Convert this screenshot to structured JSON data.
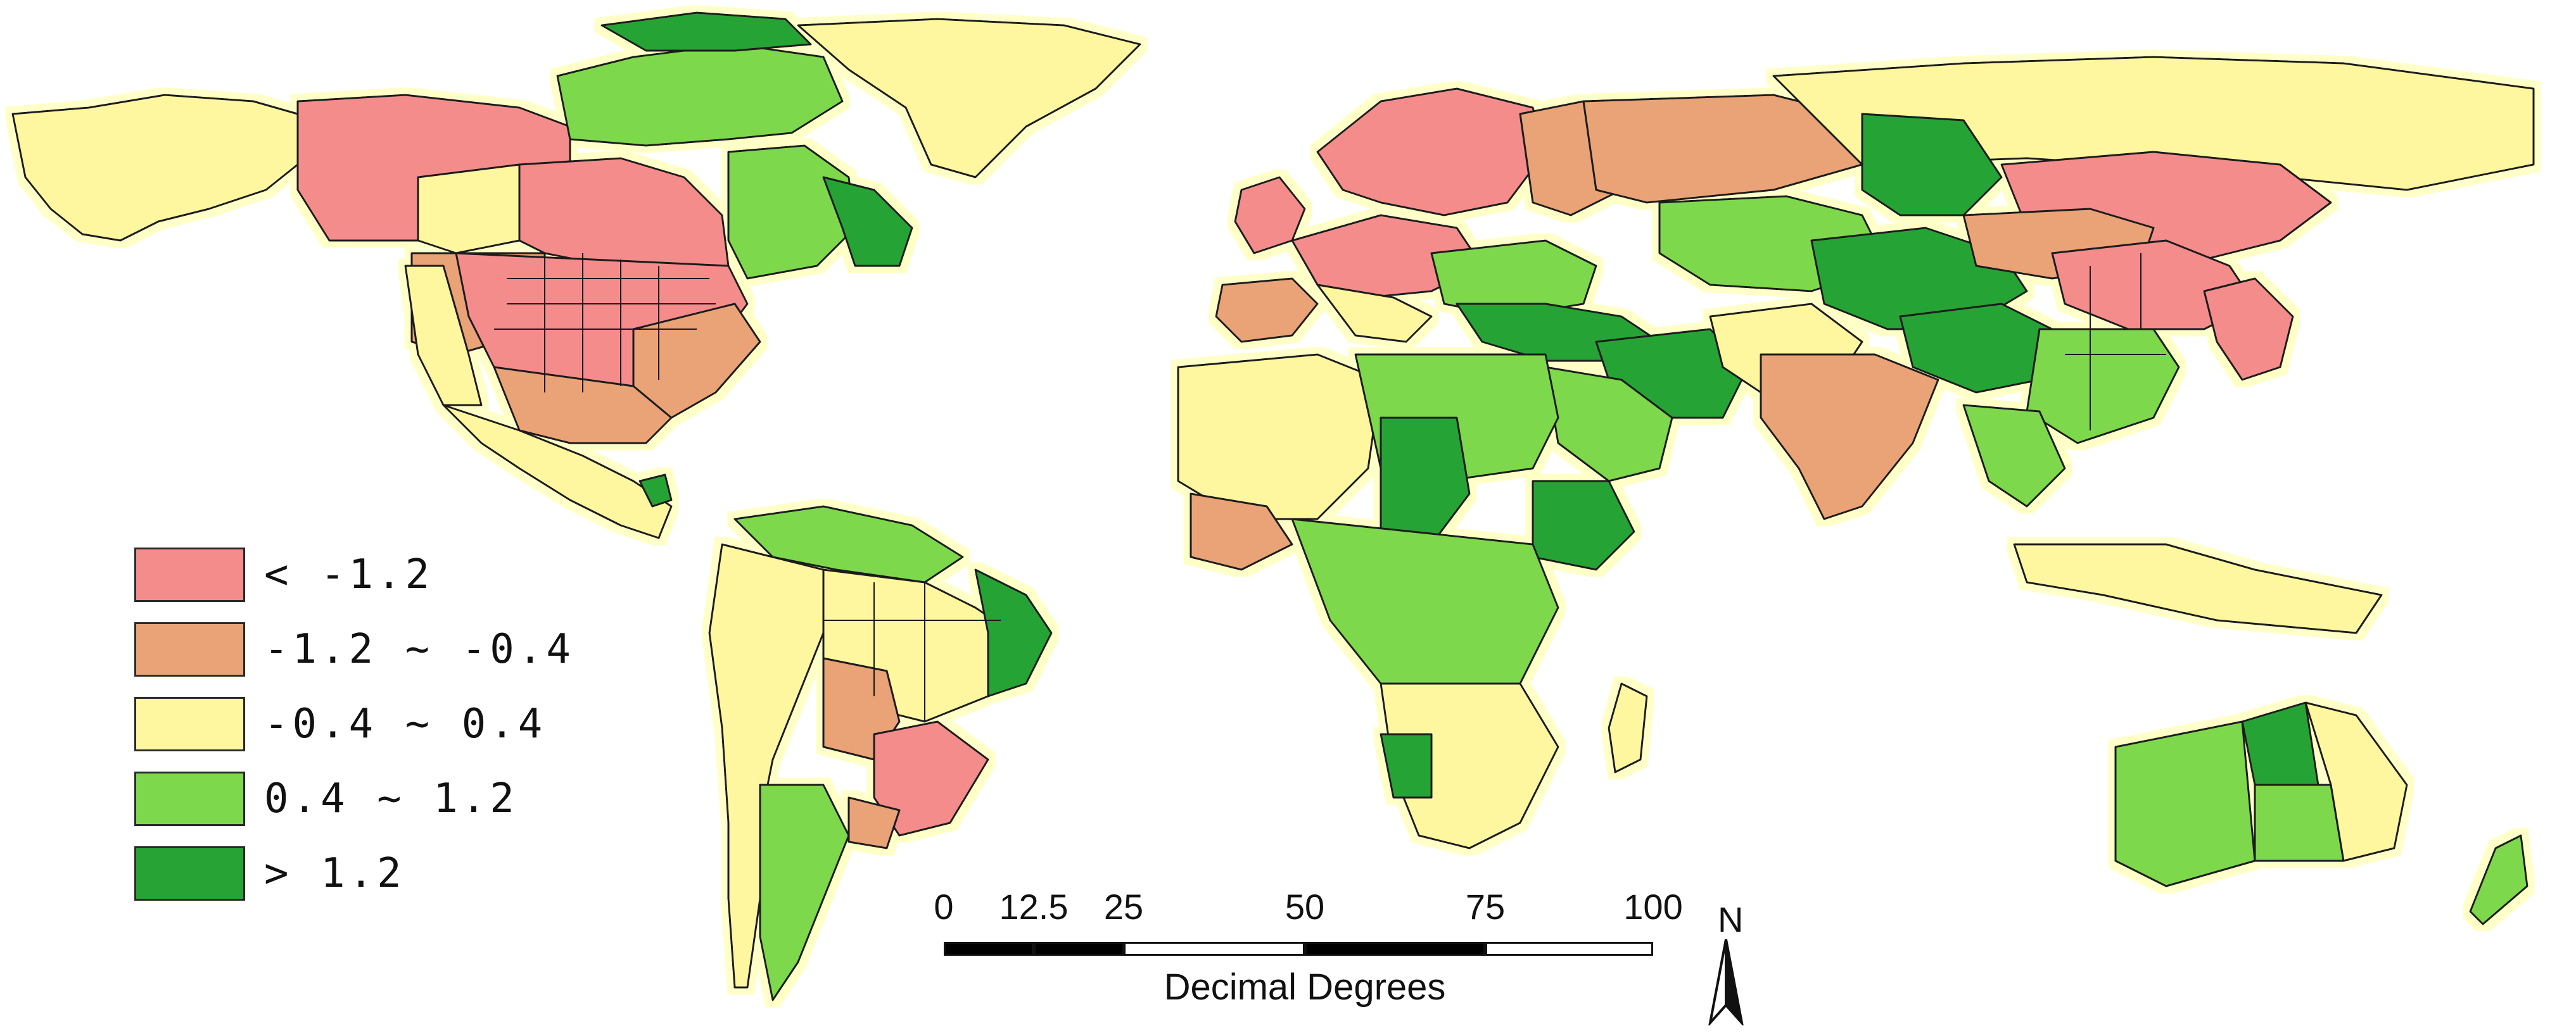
{
  "legend": {
    "items": [
      {
        "label": "< -1.2",
        "color": "#f58c8c"
      },
      {
        "label": "-1.2 ~ -0.4",
        "color": "#e9a377"
      },
      {
        "label": "-0.4 ~ 0.4",
        "color": "#fff79f"
      },
      {
        "label": "0.4 ~ 1.2",
        "color": "#7dd94b"
      },
      {
        "label": "> 1.2",
        "color": "#27a336"
      }
    ]
  },
  "scalebar": {
    "ticks": [
      "0",
      "12.5",
      "25",
      "50",
      "75",
      "100"
    ],
    "title": "Decimal Degrees"
  },
  "north_arrow": {
    "label": "N"
  },
  "colors": {
    "background": "#ffffff",
    "outline": "#1a1a1a",
    "halo": "#ffffc8"
  }
}
